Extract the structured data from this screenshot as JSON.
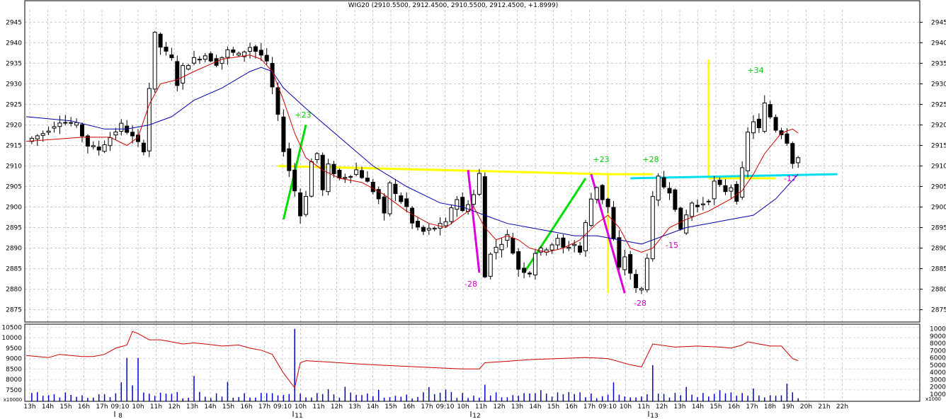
{
  "chart_data": {
    "type": "candlestick",
    "title": "WIG20 (2910.5500, 2912.4500, 2910.5500, 2912.4500, +1.8999)",
    "price_axis": {
      "ylim": [
        2872,
        2948
      ],
      "ticks": [
        2875,
        2880,
        2885,
        2890,
        2895,
        2900,
        2905,
        2910,
        2915,
        2920,
        2925,
        2930,
        2935,
        2940,
        2945
      ]
    },
    "volume_axis": {
      "ylim": [
        6950,
        10650
      ],
      "ticks": [
        7500,
        8000,
        8500,
        9000,
        9500,
        10000,
        10500
      ],
      "unit": "x10000"
    },
    "volume_axis_right": {
      "ylim": [
        0,
        10650
      ],
      "ticks": [
        1000,
        2000,
        3000,
        4000,
        5000,
        6000,
        7000,
        8000,
        9000,
        10000
      ],
      "unit": "x1000"
    },
    "time_labels": [
      "13h",
      "14h",
      "15h",
      "16h",
      "17h",
      "09:10",
      "10h",
      "11h",
      "12h",
      "13h",
      "14h",
      "15h",
      "16h",
      "17h",
      "09:10",
      "10h",
      "11h",
      "12h",
      "13h",
      "14h",
      "15h",
      "16h",
      "17h",
      "09:10",
      "10h",
      "11h",
      "12h",
      "13h",
      "14h",
      "15h",
      "16h",
      "17h",
      "09:10",
      "10h",
      "11h",
      "12h",
      "13h",
      "14h",
      "15h",
      "16h",
      "17h",
      "18h",
      "19h",
      "20h",
      "21h",
      "22h"
    ],
    "day_labels": [
      "8",
      "11",
      "12",
      "13"
    ],
    "close_path": [
      [
        0,
        2916
      ],
      [
        3,
        2918
      ],
      [
        6,
        2921
      ],
      [
        9,
        2920
      ],
      [
        11,
        2915
      ],
      [
        13,
        2914
      ],
      [
        15,
        2917
      ],
      [
        17,
        2920
      ],
      [
        19,
        2917
      ],
      [
        21,
        2914
      ],
      [
        22,
        2929
      ],
      [
        23,
        2942
      ],
      [
        24,
        2939
      ],
      [
        26,
        2936
      ],
      [
        27,
        2930
      ],
      [
        28,
        2934
      ],
      [
        30,
        2936
      ],
      [
        32,
        2937
      ],
      [
        34,
        2935
      ],
      [
        36,
        2938
      ],
      [
        38,
        2937
      ],
      [
        40,
        2939
      ],
      [
        42,
        2937
      ],
      [
        43,
        2935
      ],
      [
        44,
        2929
      ],
      [
        45,
        2922
      ],
      [
        46,
        2914
      ],
      [
        47,
        2909
      ],
      [
        48,
        2904
      ],
      [
        49,
        2898
      ],
      [
        50,
        2903
      ],
      [
        51,
        2911
      ],
      [
        52,
        2913
      ],
      [
        53,
        2904
      ],
      [
        54,
        2910
      ],
      [
        56,
        2907
      ],
      [
        58,
        2908
      ],
      [
        59,
        2909
      ],
      [
        61,
        2906
      ],
      [
        63,
        2902
      ],
      [
        64,
        2898
      ],
      [
        65,
        2906
      ],
      [
        66,
        2903
      ],
      [
        68,
        2900
      ],
      [
        69,
        2896
      ],
      [
        71,
        2894
      ],
      [
        73,
        2895
      ],
      [
        75,
        2896
      ],
      [
        76,
        2900
      ],
      [
        77,
        2902
      ],
      [
        78,
        2899
      ],
      [
        80,
        2903
      ],
      [
        81,
        2908
      ],
      [
        82,
        2883
      ],
      [
        83,
        2889
      ],
      [
        84,
        2890
      ],
      [
        86,
        2893
      ],
      [
        87,
        2889
      ],
      [
        88,
        2885
      ],
      [
        90,
        2884
      ],
      [
        91,
        2889
      ],
      [
        93,
        2890
      ],
      [
        95,
        2892
      ],
      [
        96,
        2890
      ],
      [
        98,
        2891
      ],
      [
        99,
        2889
      ],
      [
        100,
        2896
      ],
      [
        101,
        2902
      ],
      [
        102,
        2905
      ],
      [
        103,
        2902
      ],
      [
        104,
        2900
      ],
      [
        105,
        2892
      ],
      [
        106,
        2885
      ],
      [
        107,
        2888
      ],
      [
        108,
        2884
      ],
      [
        109,
        2880
      ],
      [
        110,
        2880
      ],
      [
        111,
        2888
      ],
      [
        112,
        2902
      ],
      [
        113,
        2907
      ],
      [
        114,
        2905
      ],
      [
        115,
        2904
      ],
      [
        116,
        2900
      ],
      [
        117,
        2894
      ],
      [
        118,
        2898
      ],
      [
        119,
        2901
      ],
      [
        120,
        2900
      ],
      [
        121,
        2901
      ],
      [
        122,
        2902
      ],
      [
        123,
        2906
      ],
      [
        124,
        2905
      ],
      [
        125,
        2904
      ],
      [
        126,
        2905
      ],
      [
        127,
        2902
      ],
      [
        128,
        2909
      ],
      [
        129,
        2918
      ],
      [
        130,
        2921
      ],
      [
        131,
        2919
      ],
      [
        132,
        2925
      ],
      [
        133,
        2922
      ],
      [
        134,
        2919
      ],
      [
        135,
        2918
      ],
      [
        136,
        2916
      ],
      [
        137,
        2911
      ],
      [
        138,
        2912
      ]
    ],
    "ma_red": [
      [
        0,
        2916
      ],
      [
        10,
        2917
      ],
      [
        15,
        2917
      ],
      [
        18,
        2915
      ],
      [
        20,
        2917
      ],
      [
        22,
        2925
      ],
      [
        24,
        2930
      ],
      [
        27,
        2931
      ],
      [
        30,
        2933
      ],
      [
        35,
        2936
      ],
      [
        40,
        2937
      ],
      [
        42,
        2936
      ],
      [
        44,
        2933
      ],
      [
        46,
        2926
      ],
      [
        48,
        2918
      ],
      [
        50,
        2912
      ],
      [
        53,
        2909
      ],
      [
        56,
        2907
      ],
      [
        60,
        2906
      ],
      [
        64,
        2903
      ],
      [
        68,
        2899
      ],
      [
        72,
        2896
      ],
      [
        75,
        2895
      ],
      [
        78,
        2898
      ],
      [
        80,
        2900
      ],
      [
        82,
        2895
      ],
      [
        84,
        2892
      ],
      [
        86,
        2893
      ],
      [
        88,
        2892
      ],
      [
        90,
        2890
      ],
      [
        93,
        2889
      ],
      [
        96,
        2890
      ],
      [
        99,
        2892
      ],
      [
        102,
        2896
      ],
      [
        104,
        2898
      ],
      [
        106,
        2895
      ],
      [
        108,
        2890
      ],
      [
        110,
        2889
      ],
      [
        112,
        2890
      ],
      [
        115,
        2895
      ],
      [
        118,
        2897
      ],
      [
        122,
        2899
      ],
      [
        126,
        2902
      ],
      [
        128,
        2904
      ],
      [
        130,
        2908
      ],
      [
        132,
        2913
      ],
      [
        135,
        2918
      ],
      [
        137,
        2919
      ],
      [
        138,
        2918
      ]
    ],
    "ma_blue": [
      [
        0,
        2922
      ],
      [
        8,
        2921
      ],
      [
        14,
        2919
      ],
      [
        18,
        2919
      ],
      [
        22,
        2920
      ],
      [
        26,
        2922
      ],
      [
        30,
        2926
      ],
      [
        35,
        2929
      ],
      [
        40,
        2933
      ],
      [
        42,
        2934
      ],
      [
        44,
        2933
      ],
      [
        46,
        2929
      ],
      [
        50,
        2924
      ],
      [
        56,
        2917
      ],
      [
        62,
        2910
      ],
      [
        68,
        2905
      ],
      [
        74,
        2901
      ],
      [
        78,
        2900
      ],
      [
        82,
        2898
      ],
      [
        86,
        2896
      ],
      [
        90,
        2895
      ],
      [
        94,
        2894
      ],
      [
        98,
        2893
      ],
      [
        102,
        2893
      ],
      [
        106,
        2892
      ],
      [
        110,
        2891
      ],
      [
        114,
        2893
      ],
      [
        118,
        2895
      ],
      [
        122,
        2896
      ],
      [
        126,
        2897
      ],
      [
        130,
        2898
      ],
      [
        134,
        2902
      ],
      [
        138,
        2908
      ]
    ],
    "volume_line": [
      [
        0,
        9150
      ],
      [
        2,
        9100
      ],
      [
        4,
        9050
      ],
      [
        6,
        9200
      ],
      [
        8,
        9150
      ],
      [
        10,
        9100
      ],
      [
        12,
        9100
      ],
      [
        14,
        9200
      ],
      [
        16,
        9500
      ],
      [
        18,
        9650
      ],
      [
        19,
        10300
      ],
      [
        20,
        10200
      ],
      [
        22,
        9900
      ],
      [
        24,
        9900
      ],
      [
        26,
        9800
      ],
      [
        28,
        9700
      ],
      [
        30,
        9750
      ],
      [
        32,
        9700
      ],
      [
        35,
        9600
      ],
      [
        38,
        9650
      ],
      [
        40,
        9500
      ],
      [
        42,
        9400
      ],
      [
        44,
        9200
      ],
      [
        46,
        8300
      ],
      [
        48,
        7600
      ],
      [
        49,
        8800
      ],
      [
        50,
        8900
      ],
      [
        53,
        8850
      ],
      [
        56,
        8800
      ],
      [
        59,
        8750
      ],
      [
        62,
        8700
      ],
      [
        66,
        8650
      ],
      [
        70,
        8600
      ],
      [
        74,
        8550
      ],
      [
        78,
        8500
      ],
      [
        81,
        8500
      ],
      [
        82,
        8800
      ],
      [
        85,
        8850
      ],
      [
        90,
        8950
      ],
      [
        95,
        9000
      ],
      [
        100,
        9050
      ],
      [
        104,
        9000
      ],
      [
        108,
        8700
      ],
      [
        110,
        8600
      ],
      [
        112,
        9700
      ],
      [
        116,
        9550
      ],
      [
        120,
        9600
      ],
      [
        124,
        9550
      ],
      [
        126,
        9500
      ],
      [
        128,
        9650
      ],
      [
        129,
        9800
      ],
      [
        131,
        9700
      ],
      [
        133,
        9600
      ],
      [
        135,
        9600
      ],
      [
        137,
        9000
      ],
      [
        138,
        8900
      ]
    ],
    "annotations": [
      {
        "text": "+23",
        "color": "#00cc00"
      },
      {
        "text": "+23",
        "color": "#00cc00"
      },
      {
        "text": "+28",
        "color": "#00cc00"
      },
      {
        "text": "+34",
        "color": "#00cc00"
      },
      {
        "text": "-28",
        "color": "#cc00cc"
      },
      {
        "text": "-28",
        "color": "#cc00cc"
      },
      {
        "text": "-15",
        "color": "#cc00cc"
      },
      {
        "text": "-17",
        "color": "#cc00cc"
      }
    ],
    "grid": true,
    "colors": {
      "candle": "#000000",
      "ma_red": "#cc0000",
      "ma_blue": "#0000aa",
      "volume_bar": "#0000cc",
      "volume_line": "#cc0000",
      "trend_yellow": "#ffff00",
      "trend_green": "#00dd00",
      "trend_magenta": "#dd00dd",
      "trend_cyan": "#00ddee"
    }
  }
}
